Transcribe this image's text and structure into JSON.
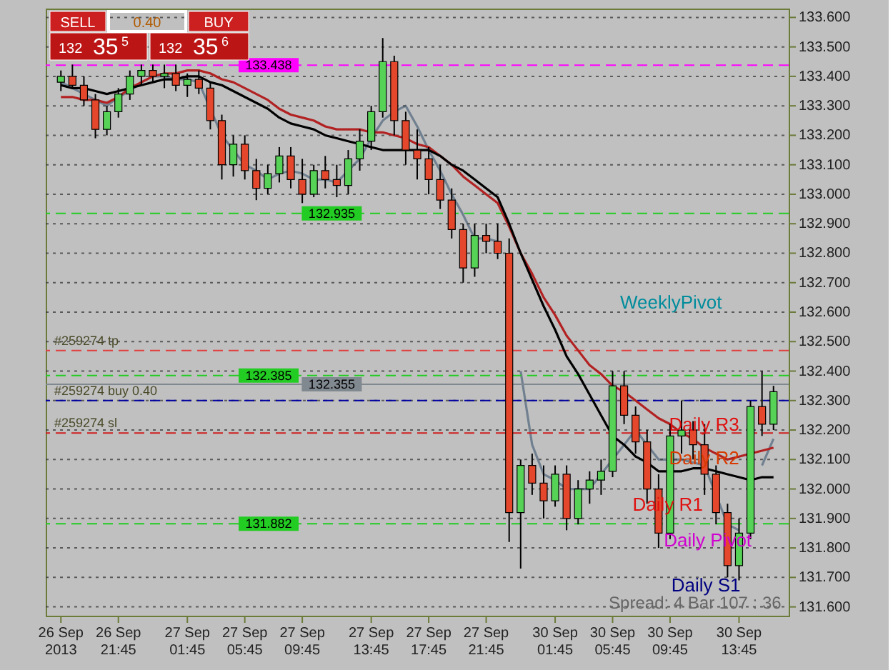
{
  "chart_data": {
    "type": "candlestick",
    "categories": [
      "26 Sep 2013",
      null,
      null,
      null,
      null,
      "26 Sep 21:45",
      null,
      null,
      null,
      null,
      null,
      "27 Sep 01:45",
      null,
      null,
      null,
      null,
      "27 Sep 05:45",
      null,
      null,
      null,
      null,
      "27 Sep 09:45",
      null,
      null,
      null,
      null,
      null,
      "27 Sep 13:45",
      null,
      null,
      null,
      null,
      "27 Sep 17:45",
      null,
      null,
      null,
      null,
      "27 Sep 21:45",
      null,
      null,
      null,
      null,
      null,
      "30 Sep 01:45",
      null,
      null,
      null,
      null,
      "30 Sep 05:45",
      null,
      null,
      null,
      null,
      "30 Sep 09:45",
      null,
      null,
      null,
      null,
      null,
      "30 Sep 13:45",
      null,
      null,
      null
    ],
    "ylim": [
      131.57,
      133.63
    ],
    "yticks": [
      {
        "value": 131.6,
        "label": "131.600"
      },
      {
        "value": 131.7,
        "label": "131.700"
      },
      {
        "value": 131.8,
        "label": "131.800"
      },
      {
        "value": 131.9,
        "label": "131.900"
      },
      {
        "value": 132.0,
        "label": "132.000"
      },
      {
        "value": 132.1,
        "label": "132.100"
      },
      {
        "value": 132.2,
        "label": "132.200"
      },
      {
        "value": 132.3,
        "label": "132.300"
      },
      {
        "value": 132.4,
        "label": "132.400"
      },
      {
        "value": 132.5,
        "label": "132.500"
      },
      {
        "value": 132.6,
        "label": "132.600"
      },
      {
        "value": 132.7,
        "label": "132.700"
      },
      {
        "value": 132.8,
        "label": "132.800"
      },
      {
        "value": 132.9,
        "label": "132.900"
      },
      {
        "value": 133.0,
        "label": "133.000"
      },
      {
        "value": 133.1,
        "label": "133.100"
      },
      {
        "value": 133.2,
        "label": "133.200"
      },
      {
        "value": 133.3,
        "label": "133.300"
      },
      {
        "value": 133.4,
        "label": "133.400"
      },
      {
        "value": 133.5,
        "label": "133.500"
      },
      {
        "value": 133.6,
        "label": "133.600"
      }
    ],
    "grid": "y",
    "series": [
      {
        "type": "line",
        "color": "#708090",
        "values": [
          133.38,
          133.36,
          133.34,
          133.32,
          133.3,
          133.33,
          133.35,
          133.38,
          133.4,
          133.4,
          133.39,
          133.39,
          133.38,
          133.29,
          133.2,
          133.15,
          133.1,
          133.08,
          133.05,
          133.07,
          133.08,
          133.07,
          133.05,
          133.05,
          133.04,
          133.08,
          133.12,
          133.19,
          133.25,
          133.28,
          133.3,
          133.23,
          133.15,
          133.08,
          133.0,
          132.93,
          132.85,
          132.85,
          132.84,
          null,
          132.4,
          132.15,
          132.05,
          132.03,
          132.0,
          132.0,
          132.0,
          132.05,
          132.1,
          132.15,
          132.2,
          132.15,
          132.1,
          132.1,
          132.1,
          132.09,
          132.08,
          131.98,
          131.88,
          131.86,
          null,
          132.08,
          132.17
        ]
      },
      {
        "type": "line",
        "color": "#b22222",
        "values": [
          133.33,
          133.33,
          133.32,
          133.32,
          133.31,
          133.33,
          133.36,
          133.38,
          133.4,
          133.41,
          133.41,
          133.42,
          133.42,
          133.41,
          133.39,
          133.38,
          133.36,
          133.34,
          133.32,
          133.29,
          133.27,
          133.26,
          133.25,
          133.23,
          133.22,
          133.22,
          133.22,
          133.21,
          133.21,
          133.2,
          133.19,
          133.17,
          133.16,
          133.13,
          133.1,
          133.06,
          133.03,
          133.0,
          132.97,
          132.89,
          132.8,
          132.73,
          132.65,
          132.59,
          132.52,
          132.47,
          132.42,
          132.39,
          132.35,
          132.33,
          132.3,
          132.27,
          132.24,
          132.22,
          132.19,
          132.17,
          132.14,
          132.12,
          132.1,
          132.11,
          132.12,
          132.13,
          132.14
        ]
      },
      {
        "type": "line",
        "color": "#000000",
        "values": [
          133.37,
          133.36,
          133.36,
          133.35,
          133.34,
          133.35,
          133.36,
          133.37,
          133.38,
          133.39,
          133.39,
          133.4,
          133.4,
          133.38,
          133.37,
          133.35,
          133.33,
          133.31,
          133.29,
          133.26,
          133.24,
          133.23,
          133.22,
          133.2,
          133.19,
          133.18,
          133.17,
          133.16,
          133.15,
          133.15,
          133.15,
          133.15,
          133.15,
          133.13,
          133.1,
          133.08,
          133.05,
          133.02,
          132.99,
          132.9,
          132.8,
          132.71,
          132.62,
          132.54,
          132.45,
          132.39,
          132.32,
          132.25,
          132.18,
          132.15,
          132.11,
          132.09,
          132.06,
          132.06,
          132.06,
          132.07,
          132.07,
          132.06,
          132.05,
          132.04,
          132.03,
          132.04,
          132.04
        ]
      },
      {
        "ohlc": [
          [
            133.38,
            133.42,
            133.35,
            133.4
          ],
          [
            133.4,
            133.44,
            133.36,
            133.37
          ],
          [
            133.37,
            133.4,
            133.3,
            133.32
          ],
          [
            133.32,
            133.34,
            133.19,
            133.22
          ],
          [
            133.22,
            133.3,
            133.2,
            133.28
          ],
          [
            133.28,
            133.36,
            133.26,
            133.34
          ],
          [
            133.34,
            133.42,
            133.32,
            133.4
          ],
          [
            133.4,
            133.44,
            133.37,
            133.42
          ],
          [
            133.42,
            133.44,
            133.38,
            133.4
          ],
          [
            133.4,
            133.44,
            133.36,
            133.41
          ],
          [
            133.41,
            133.44,
            133.35,
            133.37
          ],
          [
            133.37,
            133.41,
            133.33,
            133.39
          ],
          [
            133.39,
            133.42,
            133.34,
            133.36
          ],
          [
            133.36,
            133.38,
            133.22,
            133.25
          ],
          [
            133.25,
            133.27,
            133.05,
            133.1
          ],
          [
            133.1,
            133.2,
            133.06,
            133.17
          ],
          [
            133.17,
            133.2,
            133.05,
            133.08
          ],
          [
            133.08,
            133.12,
            132.98,
            133.02
          ],
          [
            133.02,
            133.1,
            133.0,
            133.07
          ],
          [
            133.07,
            133.16,
            133.04,
            133.13
          ],
          [
            133.13,
            133.16,
            133.02,
            133.05
          ],
          [
            133.05,
            133.12,
            132.97,
            133.0
          ],
          [
            133.0,
            133.1,
            132.99,
            133.08
          ],
          [
            133.08,
            133.13,
            133.02,
            133.05
          ],
          [
            133.05,
            133.1,
            132.99,
            133.03
          ],
          [
            133.03,
            133.15,
            133.0,
            133.12
          ],
          [
            133.12,
            133.22,
            133.08,
            133.18
          ],
          [
            133.18,
            133.3,
            133.15,
            133.28
          ],
          [
            133.28,
            133.53,
            133.26,
            133.45
          ],
          [
            133.45,
            133.47,
            133.2,
            133.25
          ],
          [
            133.25,
            133.28,
            133.1,
            133.15
          ],
          [
            133.15,
            133.22,
            133.05,
            133.12
          ],
          [
            133.12,
            133.16,
            133.0,
            133.05
          ],
          [
            133.05,
            133.1,
            132.95,
            132.98
          ],
          [
            132.98,
            133.02,
            132.85,
            132.88
          ],
          [
            132.88,
            132.9,
            132.7,
            132.75
          ],
          [
            132.75,
            132.9,
            132.72,
            132.86
          ],
          [
            132.86,
            132.9,
            132.8,
            132.84
          ],
          [
            132.84,
            132.9,
            132.78,
            132.8
          ],
          [
            132.8,
            132.85,
            131.82,
            131.92
          ],
          [
            131.92,
            132.1,
            131.73,
            132.08
          ],
          [
            132.08,
            132.12,
            131.98,
            132.02
          ],
          [
            132.02,
            132.08,
            131.9,
            131.96
          ],
          [
            131.96,
            132.08,
            131.94,
            132.05
          ],
          [
            132.05,
            132.08,
            131.86,
            131.9
          ],
          [
            131.9,
            132.03,
            131.88,
            132.0
          ],
          [
            132.0,
            132.06,
            131.95,
            132.03
          ],
          [
            132.03,
            132.1,
            131.98,
            132.06
          ],
          [
            132.06,
            132.4,
            132.04,
            132.35
          ],
          [
            132.35,
            132.4,
            132.22,
            132.25
          ],
          [
            132.25,
            132.28,
            132.12,
            132.16
          ],
          [
            132.16,
            132.2,
            131.95,
            132.0
          ],
          [
            132.0,
            132.05,
            131.8,
            131.85
          ],
          [
            131.85,
            132.22,
            131.83,
            132.18
          ],
          [
            132.18,
            132.3,
            132.12,
            132.2
          ],
          [
            132.2,
            132.23,
            132.1,
            132.15
          ],
          [
            132.15,
            132.22,
            131.98,
            132.05
          ],
          [
            132.05,
            132.08,
            131.88,
            131.92
          ],
          [
            131.92,
            131.95,
            131.7,
            131.74
          ],
          [
            131.74,
            131.9,
            131.69,
            131.85
          ],
          [
            131.85,
            132.3,
            131.83,
            132.28
          ],
          [
            132.28,
            132.4,
            132.18,
            132.22
          ],
          [
            132.22,
            132.35,
            132.2,
            132.33
          ]
        ],
        "colors": [
          "#56d356",
          "#e4472b",
          "#e4472b",
          "#e4472b",
          "#56d356",
          "#56d356",
          "#56d356",
          "#56d356",
          "#e4472b",
          "#56d356",
          "#e4472b",
          "#56d356",
          "#e4472b",
          "#e4472b",
          "#e4472b",
          "#56d356",
          "#e4472b",
          "#e4472b",
          "#56d356",
          "#56d356",
          "#e4472b",
          "#e4472b",
          "#56d356",
          "#e4472b",
          "#e4472b",
          "#56d356",
          "#56d356",
          "#56d356",
          "#56d356",
          "#e4472b",
          "#e4472b",
          "#e4472b",
          "#e4472b",
          "#e4472b",
          "#e4472b",
          "#e4472b",
          "#56d356",
          "#e4472b",
          "#e4472b",
          "#e4472b",
          "#56d356",
          "#e4472b",
          "#e4472b",
          "#56d356",
          "#e4472b",
          "#56d356",
          "#56d356",
          "#56d356",
          "#56d356",
          "#e4472b",
          "#e4472b",
          "#e4472b",
          "#e4472b",
          "#56d356",
          "#56d356",
          "#e4472b",
          "#e4472b",
          "#e4472b",
          "#e4472b",
          "#56d356",
          "#56d356",
          "#e4472b",
          "#56d356"
        ]
      }
    ],
    "ref_lines": [
      {
        "axis": "y",
        "value": 133.438,
        "label": "133.438",
        "color": "#ff00ff",
        "line_style": "dashed"
      },
      {
        "axis": "y",
        "value": 132.935,
        "label": "132.935",
        "color": "#22cc22",
        "line_style": "dashed"
      },
      {
        "axis": "y",
        "value": 132.47,
        "color": "#e04040",
        "line_style": "dashed"
      },
      {
        "axis": "y",
        "value": 132.385,
        "label": "132.385",
        "color": "#22cc22",
        "line_style": "dashed"
      },
      {
        "axis": "y",
        "value": 132.355,
        "label": "132.355",
        "color": "#808890",
        "line_style": "solid"
      },
      {
        "axis": "y",
        "value": 132.3,
        "color": "#0000a0",
        "line_style": "dashed"
      },
      {
        "axis": "y",
        "value": 132.19,
        "color": "#d02020",
        "line_style": "dashed"
      },
      {
        "axis": "y",
        "value": 131.882,
        "label": "131.882",
        "color": "#22cc22",
        "line_style": "dashed"
      }
    ],
    "annotations": [
      "SELL",
      "0.40",
      "BUY",
      "132 35$^{5}$",
      "132 35$^{6}$",
      "Spread: 4 Bar  107 : 36",
      "WeeklyPivot",
      "Daily R3",
      "Daily R2",
      "Daily R1",
      "Daily Pivot",
      "Daily S1",
      {
        "text": "#259274 tp",
        "y": 132.47
      },
      {
        "text": "#259274 buy 0.40",
        "y": 132.3
      },
      {
        "text": "#259274 sl",
        "y": 132.19
      }
    ]
  }
}
